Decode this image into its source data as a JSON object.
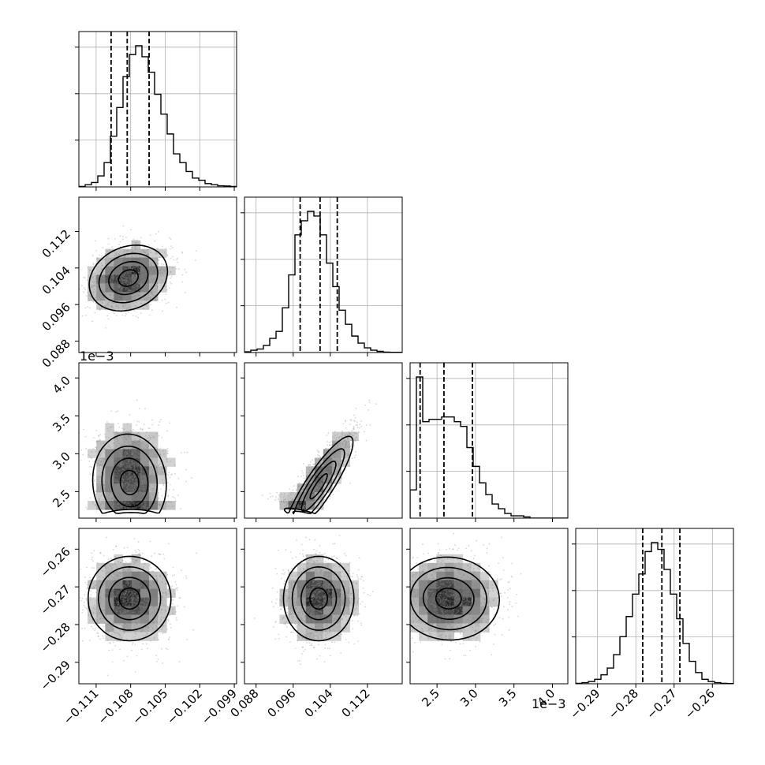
{
  "figure": {
    "offset_labels": [
      {
        "id": "y-offset-param3",
        "text": "1e−3"
      },
      {
        "id": "x-offset-param3",
        "text": "1e−3"
      }
    ]
  },
  "colors": {
    "axes": "#000000",
    "grid": "#b0b0b0",
    "points": "#888888",
    "hist": "#000000",
    "quantile": "#000000"
  },
  "chart_data": {
    "type": "corner",
    "params": [
      {
        "range": [
          -0.1125,
          -0.0988
        ],
        "ticks": [
          -0.111,
          -0.108,
          -0.105,
          -0.102,
          -0.099
        ],
        "tick_labels": [
          "−0.111",
          "−0.108",
          "−0.105",
          "−0.102",
          "−0.099"
        ]
      },
      {
        "range": [
          0.0855,
          0.1195
        ],
        "ticks": [
          0.088,
          0.096,
          0.104,
          0.112
        ],
        "tick_labels": [
          "0.088",
          "0.096",
          "0.104",
          "0.112"
        ]
      },
      {
        "range": [
          2.15,
          4.2
        ],
        "ticks": [
          2.5,
          3.0,
          3.5,
          4.0
        ],
        "tick_labels": [
          "2.5",
          "3.0",
          "3.5",
          "4.0"
        ]
      },
      {
        "range": [
          -0.2957,
          -0.2545
        ],
        "ticks": [
          -0.29,
          -0.28,
          -0.27,
          -0.26
        ],
        "tick_labels": [
          "−0.29",
          "−0.28",
          "−0.27",
          "−0.26"
        ]
      }
    ],
    "histograms": [
      {
        "quantiles": [
          -0.1097,
          -0.1083,
          -0.1064
        ],
        "counts": [
          0.2,
          1,
          2,
          5,
          11,
          23,
          36,
          50,
          60,
          64,
          59,
          52,
          42,
          33,
          24,
          15,
          11,
          7,
          4,
          3,
          1.5,
          1,
          0.5,
          0.4,
          0.2
        ]
      },
      {
        "quantiles": [
          0.0975,
          0.1018,
          0.1055
        ],
        "counts": [
          0.3,
          1,
          1.5,
          3,
          6,
          9,
          19,
          33,
          50,
          56,
          60,
          58,
          50,
          38,
          28,
          18,
          12,
          7,
          4,
          2,
          1,
          0.5,
          0.2,
          0.1,
          0.1
        ]
      },
      {
        "quantiles": [
          2.28,
          2.59,
          2.96
        ],
        "counts": [
          12,
          60,
          41,
          42,
          42,
          43,
          43,
          41,
          39,
          30,
          22,
          15,
          10,
          6,
          4,
          2,
          1,
          1,
          0.5,
          0,
          0,
          0,
          0,
          0,
          0
        ]
      },
      {
        "quantiles": [
          -0.2782,
          -0.2732,
          -0.2685
        ],
        "counts": [
          0.2,
          0.5,
          1,
          2,
          4,
          7,
          13,
          21,
          30,
          40,
          49,
          59,
          63,
          60,
          51,
          40,
          29,
          18,
          10,
          5,
          2,
          1,
          0.5,
          0.2,
          0.1
        ]
      }
    ],
    "pairs": [
      {
        "row": 1,
        "col": 0,
        "mean": [
          -0.1082,
          0.1018
        ],
        "sd": [
          0.0017,
          0.0036
        ],
        "rho": 0.2
      },
      {
        "row": 2,
        "col": 0,
        "mean": [
          -0.1081,
          2.7
        ],
        "sd": [
          0.0016,
          0.32
        ],
        "rho": -0.05
      },
      {
        "row": 2,
        "col": 1,
        "mean": [
          0.1015,
          2.65
        ],
        "sd": [
          0.0037,
          0.33
        ],
        "rho": 0.88
      },
      {
        "row": 3,
        "col": 0,
        "mean": [
          -0.1081,
          -0.2731
        ],
        "sd": [
          0.0018,
          0.0056
        ],
        "rho": 0.0
      },
      {
        "row": 3,
        "col": 1,
        "mean": [
          0.1015,
          -0.2731
        ],
        "sd": [
          0.0038,
          0.0056
        ],
        "rho": 0.0
      },
      {
        "row": 3,
        "col": 2,
        "mean": [
          2.65,
          -0.2731
        ],
        "sd": [
          0.33,
          0.0055
        ],
        "rho": -0.03
      }
    ],
    "contour_levels_sigma": [
      0.5,
      1.0,
      1.5,
      2.0
    ]
  }
}
